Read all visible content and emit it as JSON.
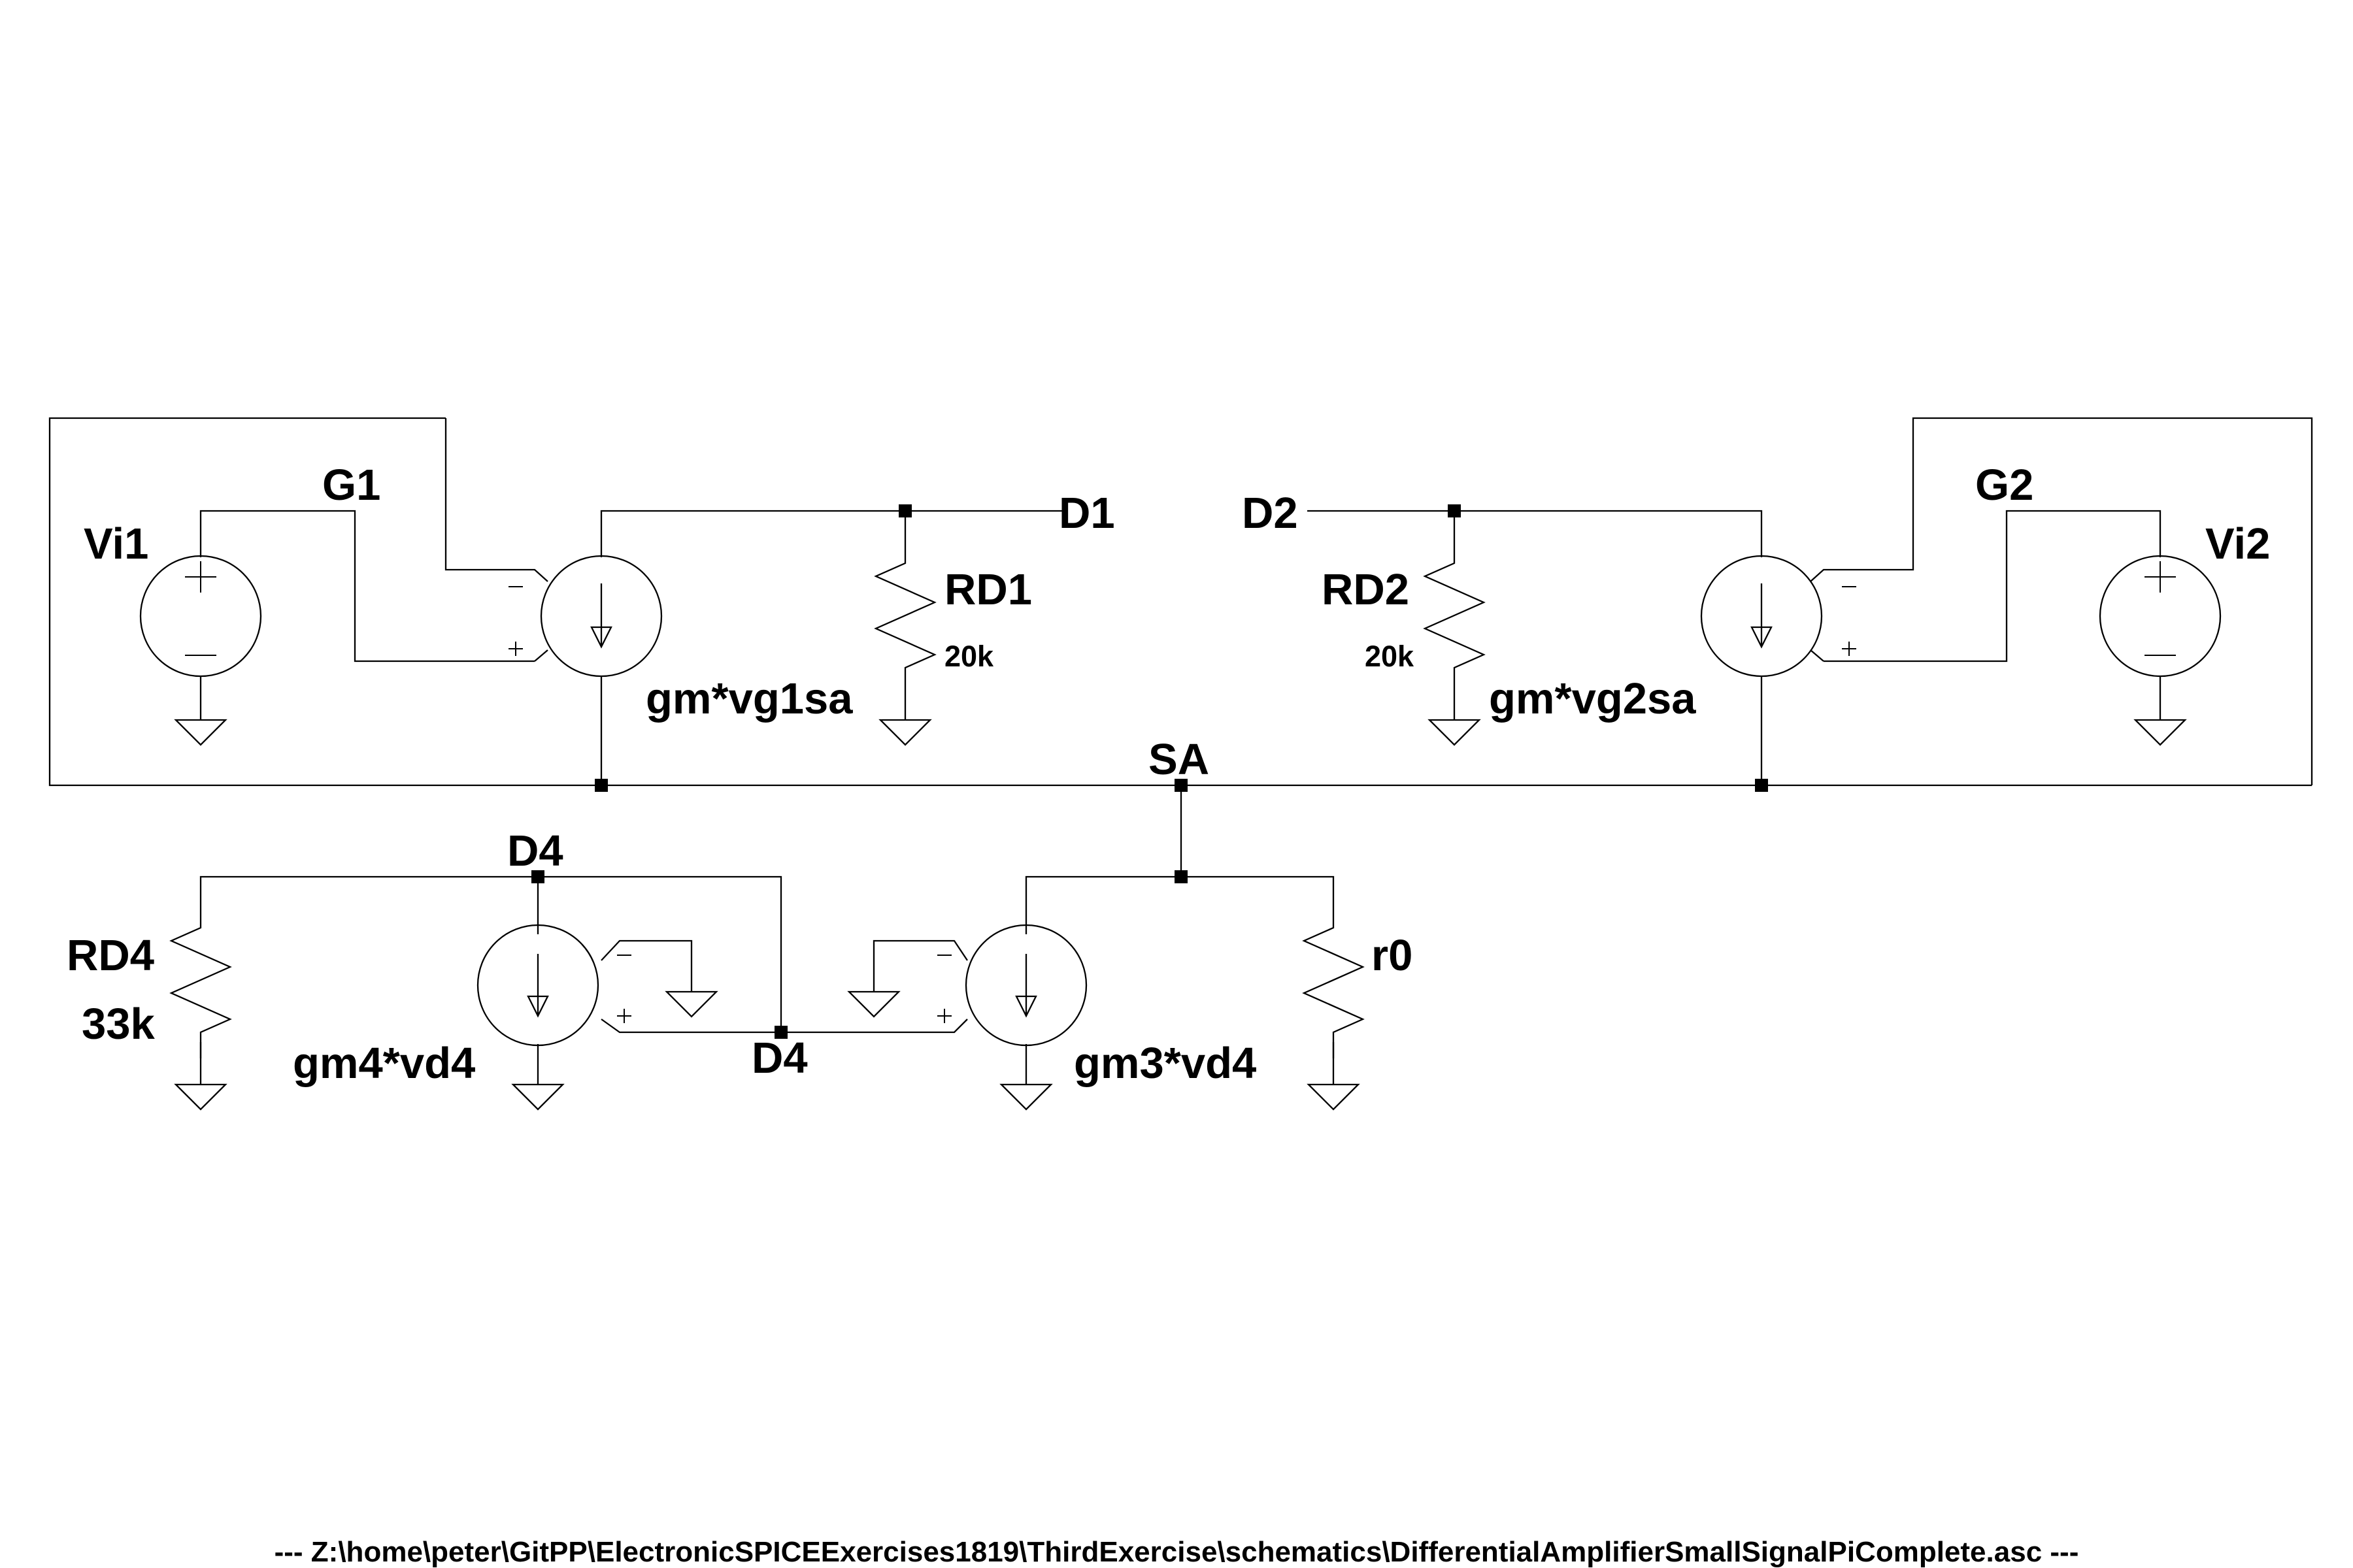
{
  "labels": {
    "vi1": "Vi1",
    "vi2": "Vi2",
    "g1": "G1",
    "g2": "G2",
    "d1": "D1",
    "d2": "D2",
    "rd1": "RD1",
    "rd1_value": "20k",
    "rd2": "RD2",
    "rd2_value": "20k",
    "gm_vg1sa": "gm*vg1sa",
    "gm_vg2sa": "gm*vg2sa",
    "sa": "SA",
    "d4_top": "D4",
    "d4_bottom": "D4",
    "rd4": "RD4",
    "rd4_value": "33k",
    "gm4_vd4": "gm4*vd4",
    "gm3_vd4": "gm3*vd4",
    "r0": "r0"
  },
  "footer": {
    "path": "---  Z:\\home\\peter\\GitPP\\ElectronicSPICEExercises1819\\ThirdExercise\\schematics\\DifferentialAmplifierSmallSignalPiComplete.asc  ---"
  }
}
